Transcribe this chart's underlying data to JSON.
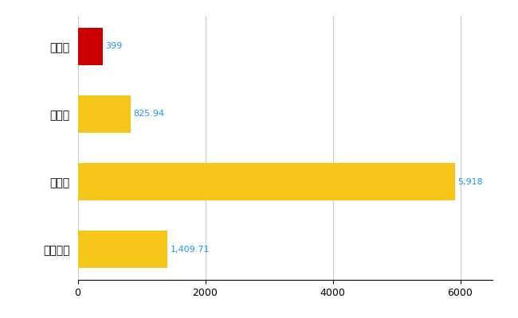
{
  "categories": [
    "全国平均",
    "県最大",
    "県平均",
    "雫石町"
  ],
  "values": [
    1409.71,
    5918,
    825.94,
    399
  ],
  "bar_colors": [
    "#F5C518",
    "#F5C518",
    "#F5C518",
    "#CC0000"
  ],
  "value_labels": [
    "1,409.71",
    "5,918",
    "825.94",
    "399"
  ],
  "xlim": [
    0,
    6500
  ],
  "xticks": [
    0,
    2000,
    4000,
    6000
  ],
  "xtick_labels": [
    "0",
    "2000",
    "4000",
    "6000"
  ],
  "background_color": "#FFFFFF",
  "grid_color": "#CCCCCC",
  "label_color": "#1E90FF",
  "bar_height": 0.55,
  "figsize": [
    6.5,
    4.0
  ],
  "dpi": 100
}
